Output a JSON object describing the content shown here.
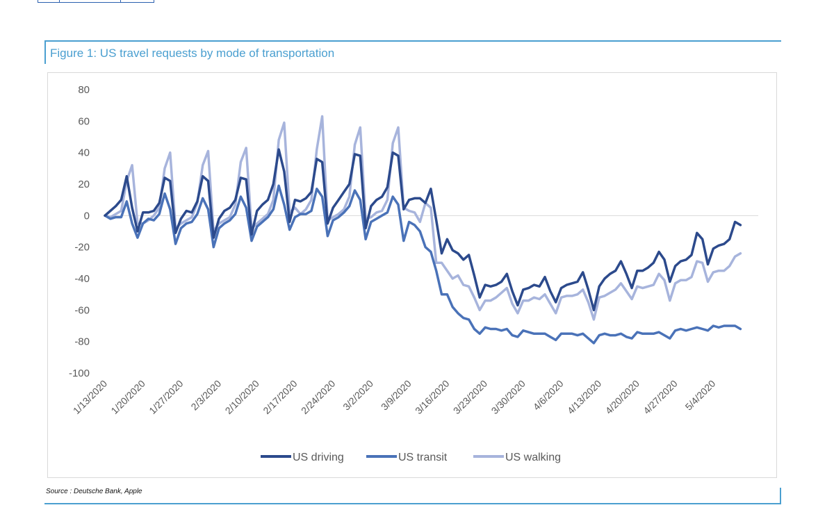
{
  "figure": {
    "title": "Figure 1: US travel requests by mode of transportation",
    "source": "Source : Deutsche Bank, Apple"
  },
  "colors": {
    "frame": "#4a9fd0",
    "driving": "#2c4a8c",
    "transit": "#4a72b8",
    "walking": "#a7b4dc",
    "zero_line": "#d9d9d9"
  },
  "chart_data": {
    "type": "line",
    "title": "",
    "xlabel": "",
    "ylabel": "",
    "ylim": [
      -100,
      80
    ],
    "yticks": [
      80,
      60,
      40,
      20,
      0,
      -20,
      -40,
      -60,
      -80,
      -100
    ],
    "x_tick_labels": [
      "1/13/2020",
      "1/20/2020",
      "1/27/2020",
      "2/3/2020",
      "2/10/2020",
      "2/17/2020",
      "2/24/2020",
      "3/2/2020",
      "3/9/2020",
      "3/16/2020",
      "3/23/2020",
      "3/30/2020",
      "4/6/2020",
      "4/13/2020",
      "4/20/2020",
      "4/27/2020",
      "5/4/2020"
    ],
    "x_start": "1/13/2020",
    "x_end": "5/11/2020",
    "grid": false,
    "legend_position": "bottom",
    "series": [
      {
        "name": "US driving",
        "values": [
          0,
          3,
          6,
          10,
          25,
          5,
          -10,
          2,
          2,
          3,
          8,
          24,
          22,
          -11,
          -2,
          3,
          2,
          9,
          25,
          22,
          -14,
          -2,
          3,
          5,
          10,
          24,
          23,
          -12,
          3,
          7,
          10,
          20,
          42,
          28,
          -4,
          10,
          9,
          11,
          15,
          36,
          34,
          -5,
          5,
          10,
          15,
          20,
          39,
          38,
          -8,
          6,
          10,
          12,
          18,
          40,
          38,
          4,
          10,
          11,
          11,
          8,
          17,
          -3,
          -24,
          -15,
          -22,
          -24,
          -28,
          -25,
          -38,
          -52,
          -44,
          -45,
          -44,
          -42,
          -37,
          -48,
          -57,
          -47,
          -46,
          -44,
          -45,
          -39,
          -48,
          -55,
          -46,
          -44,
          -43,
          -42,
          -36,
          -47,
          -60,
          -45,
          -40,
          -37,
          -35,
          -29,
          -37,
          -46,
          -35,
          -35,
          -33,
          -30,
          -23,
          -28,
          -42,
          -32,
          -29,
          -28,
          -25,
          -11,
          -15,
          -31,
          -21,
          -19,
          -18,
          -15,
          -4,
          -6
        ]
      },
      {
        "name": "US transit",
        "values": [
          0,
          -2,
          -1,
          -1,
          9,
          -5,
          -14,
          -5,
          -2,
          -3,
          1,
          14,
          4,
          -18,
          -8,
          -5,
          -4,
          1,
          11,
          4,
          -20,
          -8,
          -5,
          -3,
          1,
          12,
          5,
          -16,
          -7,
          -4,
          -1,
          4,
          19,
          7,
          -9,
          -1,
          1,
          1,
          3,
          17,
          12,
          -13,
          -3,
          -1,
          2,
          6,
          16,
          10,
          -15,
          -4,
          -2,
          0,
          2,
          12,
          7,
          -16,
          -4,
          -6,
          -10,
          -20,
          -23,
          -35,
          -50,
          -50,
          -58,
          -62,
          -65,
          -66,
          -72,
          -75,
          -71,
          -72,
          -72,
          -73,
          -72,
          -76,
          -77,
          -73,
          -74,
          -75,
          -75,
          -75,
          -77,
          -79,
          -75,
          -75,
          -75,
          -76,
          -75,
          -78,
          -81,
          -76,
          -75,
          -76,
          -76,
          -75,
          -77,
          -78,
          -74,
          -75,
          -75,
          -75,
          -74,
          -76,
          -78,
          -73,
          -72,
          -73,
          -72,
          -71,
          -72,
          -73,
          -70,
          -71,
          -70,
          -70,
          -70,
          -72
        ]
      },
      {
        "name": "US walking",
        "values": [
          0,
          -1,
          1,
          3,
          22,
          32,
          -5,
          -5,
          -3,
          0,
          5,
          30,
          40,
          -8,
          -5,
          -3,
          -1,
          8,
          32,
          41,
          -10,
          -5,
          -3,
          -1,
          7,
          34,
          43,
          -8,
          -5,
          -2,
          1,
          10,
          48,
          59,
          2,
          5,
          1,
          4,
          10,
          42,
          63,
          -3,
          -1,
          1,
          4,
          12,
          45,
          56,
          -2,
          -1,
          2,
          3,
          10,
          46,
          56,
          5,
          3,
          2,
          -4,
          8,
          5,
          -30,
          -30,
          -35,
          -40,
          -38,
          -44,
          -45,
          -52,
          -60,
          -54,
          -54,
          -52,
          -49,
          -46,
          -56,
          -62,
          -54,
          -54,
          -52,
          -53,
          -50,
          -56,
          -62,
          -52,
          -51,
          -51,
          -50,
          -47,
          -55,
          -66,
          -52,
          -51,
          -49,
          -47,
          -43,
          -48,
          -53,
          -45,
          -46,
          -45,
          -44,
          -37,
          -41,
          -54,
          -43,
          -41,
          -41,
          -39,
          -29,
          -30,
          -42,
          -36,
          -35,
          -35,
          -32,
          -26,
          -24
        ]
      }
    ]
  }
}
